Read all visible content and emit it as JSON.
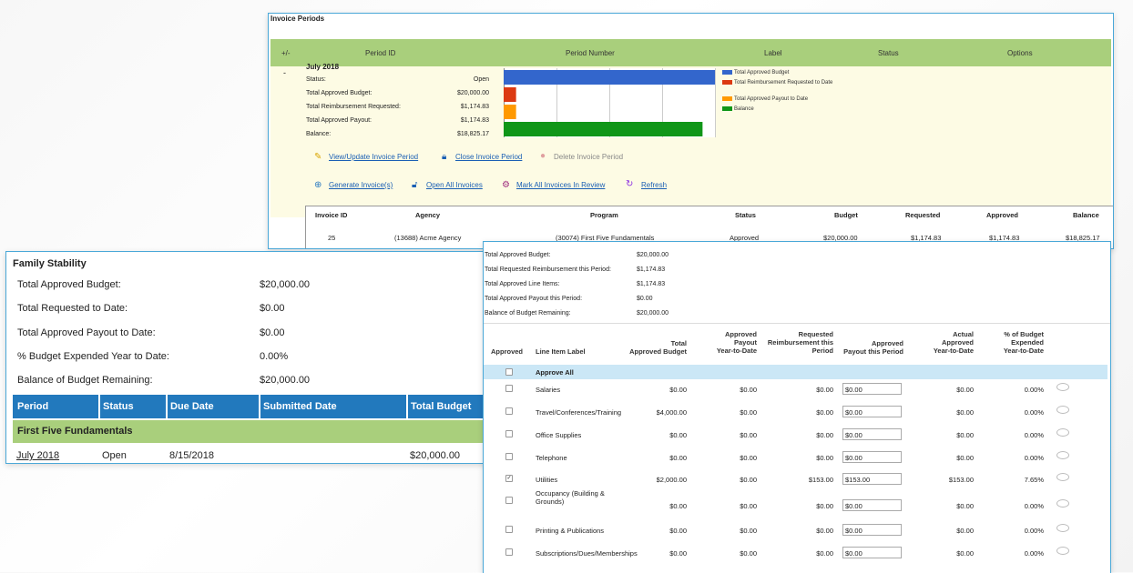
{
  "invoice_periods": {
    "title": "Invoice Periods",
    "headers": [
      "+/-",
      "Period ID",
      "Period Number",
      "Label",
      "Status",
      "Options"
    ],
    "toggle": "-",
    "period_name": "July 2018",
    "stats": [
      {
        "label": "Status:",
        "value": "Open"
      },
      {
        "label": "Total Approved Budget:",
        "value": "$20,000.00"
      },
      {
        "label": "Total Reimbursement Requested:",
        "value": "$1,174.83"
      },
      {
        "label": "Total Approved Payout:",
        "value": "$1,174.83"
      },
      {
        "label": "Balance:",
        "value": "$18,825.17"
      }
    ],
    "chart_data": {
      "type": "bar",
      "orientation": "horizontal",
      "categories": [
        "Total Approved Budget",
        "Total Reimbursement Requested to Date",
        "Total Approved Payout to Date",
        "Balance"
      ],
      "values": [
        20000,
        1174.83,
        1174.83,
        18825.17
      ],
      "colors": [
        "#3366cc",
        "#dc3912",
        "#ff9900",
        "#109618"
      ],
      "xlim": [
        0,
        20000
      ],
      "grid": true,
      "legend": "right"
    },
    "actions_row1": [
      {
        "label": "View/Update Invoice Period",
        "icon": "pencil-icon",
        "enabled": true
      },
      {
        "label": "Close Invoice Period",
        "icon": "lock-icon",
        "enabled": true
      },
      {
        "label": "Delete Invoice Period",
        "icon": "delete-icon",
        "enabled": false
      }
    ],
    "actions_row2": [
      {
        "label": "Generate Invoice(s)",
        "icon": "plus-circle-icon"
      },
      {
        "label": "Open All Invoices",
        "icon": "unlock-icon"
      },
      {
        "label": "Mark All Invoices In Review",
        "icon": "review-icon"
      },
      {
        "label": "Refresh",
        "icon": "refresh-icon"
      }
    ],
    "invoice_table": {
      "headers": [
        "Invoice ID",
        "Agency",
        "Program",
        "Status",
        "Budget",
        "Requested",
        "Approved",
        "Balance"
      ],
      "row": [
        "25",
        "(13688) Acme Agency",
        "(30074) First Five Fundamentals",
        "Approved",
        "$20,000.00",
        "$1,174.83",
        "$1,174.83",
        "$18,825.17"
      ]
    }
  },
  "family_stability": {
    "title": "Family Stability",
    "rows": [
      {
        "label": "Total Approved Budget:",
        "value": "$20,000.00"
      },
      {
        "label": "Total Requested to Date:",
        "value": "$0.00"
      },
      {
        "label": "Total Approved Payout to Date:",
        "value": "$0.00"
      },
      {
        "label": "% Budget Expended Year to Date:",
        "value": "0.00%"
      },
      {
        "label": "Balance of Budget Remaining:",
        "value": "$20,000.00"
      }
    ],
    "headers": [
      "Period",
      "Status",
      "Due Date",
      "Submitted Date",
      "Total Budget"
    ],
    "group": "First Five Fundamentals",
    "row": {
      "period": "July 2018",
      "status": "Open",
      "due": "8/15/2018",
      "submitted": "",
      "budget": "$20,000.00"
    }
  },
  "line_items": {
    "summary": [
      {
        "label": "Total Approved Budget:",
        "value": "$20,000.00"
      },
      {
        "label": "Total Requested Reimbursement this Period:",
        "value": "$1,174.83"
      },
      {
        "label": "Total Approved Line Items:",
        "value": "$1,174.83"
      },
      {
        "label": "Total Approved Payout this Period:",
        "value": "$0.00"
      },
      {
        "label": "Balance of Budget Remaining:",
        "value": "$20,000.00"
      }
    ],
    "headers": [
      [
        "Approved"
      ],
      [
        "Line Item Label"
      ],
      [
        "Total",
        "Approved Budget"
      ],
      [
        "Approved",
        "Payout",
        "Year-to-Date"
      ],
      [
        "Requested",
        "Reimbursement this",
        "Period"
      ],
      [
        "Approved",
        "Payout this Period"
      ],
      [
        "Actual",
        "Approved",
        "Year-to-Date"
      ],
      [
        "% of Budget",
        "Expended",
        "Year-to-Date"
      ]
    ],
    "approve_all": "Approve All",
    "items": [
      {
        "checked": false,
        "label": "Salaries",
        "budget": "$0.00",
        "ytd": "$0.00",
        "req": "$0.00",
        "payout": "$0.00",
        "actual": "$0.00",
        "pct": "0.00%"
      },
      {
        "checked": false,
        "label": "Travel/Conferences/Training",
        "budget": "$4,000.00",
        "ytd": "$0.00",
        "req": "$0.00",
        "payout": "$0.00",
        "actual": "$0.00",
        "pct": "0.00%"
      },
      {
        "checked": false,
        "label": "Office Supplies",
        "budget": "$0.00",
        "ytd": "$0.00",
        "req": "$0.00",
        "payout": "$0.00",
        "actual": "$0.00",
        "pct": "0.00%"
      },
      {
        "checked": false,
        "label": "Telephone",
        "budget": "$0.00",
        "ytd": "$0.00",
        "req": "$0.00",
        "payout": "$0.00",
        "actual": "$0.00",
        "pct": "0.00%"
      },
      {
        "checked": true,
        "label": "Utilities",
        "budget": "$2,000.00",
        "ytd": "$0.00",
        "req": "$153.00",
        "payout": "$153.00",
        "actual": "$153.00",
        "pct": "7.65%"
      },
      {
        "checked": false,
        "label": "Occupancy (Building &",
        "label2": "Grounds)",
        "budget": "$0.00",
        "ytd": "$0.00",
        "req": "$0.00",
        "payout": "$0.00",
        "actual": "$0.00",
        "pct": "0.00%"
      },
      {
        "checked": false,
        "label": "Printing & Publications",
        "budget": "$0.00",
        "ytd": "$0.00",
        "req": "$0.00",
        "payout": "$0.00",
        "actual": "$0.00",
        "pct": "0.00%"
      },
      {
        "checked": false,
        "label": "Subscriptions/Dues/Memberships",
        "budget": "$0.00",
        "ytd": "$0.00",
        "req": "$0.00",
        "payout": "$0.00",
        "actual": "$0.00",
        "pct": "0.00%"
      }
    ]
  }
}
